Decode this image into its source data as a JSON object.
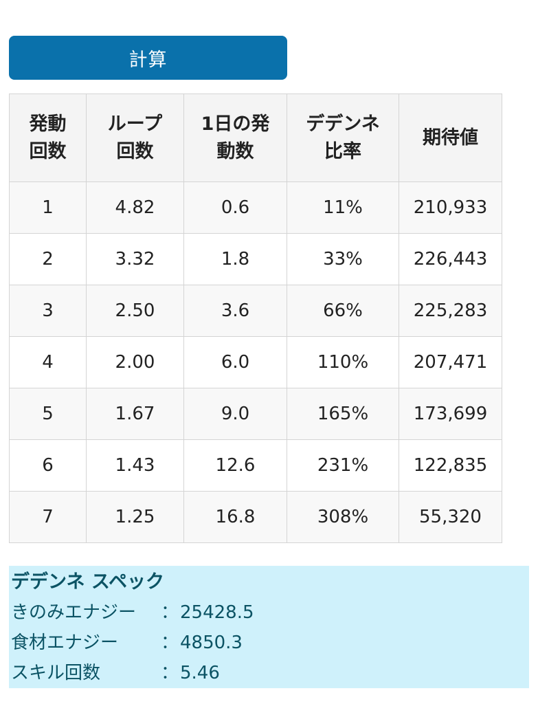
{
  "calc_button": {
    "label": "計算"
  },
  "table": {
    "headers": [
      [
        "発動",
        "回数"
      ],
      [
        "ループ",
        "回数"
      ],
      [
        "1日の発",
        "動数"
      ],
      [
        "デデンネ",
        "比率"
      ],
      [
        "期待値"
      ]
    ],
    "rows": [
      [
        "1",
        "4.82",
        "0.6",
        "11%",
        "210,933"
      ],
      [
        "2",
        "3.32",
        "1.8",
        "33%",
        "226,443"
      ],
      [
        "3",
        "2.50",
        "3.6",
        "66%",
        "225,283"
      ],
      [
        "4",
        "2.00",
        "6.0",
        "110%",
        "207,471"
      ],
      [
        "5",
        "1.67",
        "9.0",
        "165%",
        "173,699"
      ],
      [
        "6",
        "1.43",
        "12.6",
        "231%",
        "122,835"
      ],
      [
        "7",
        "1.25",
        "16.8",
        "308%",
        "55,320"
      ]
    ]
  },
  "spec": {
    "title": "デデンネ スペック",
    "items": [
      {
        "label": "きのみエナジー",
        "sep": "：",
        "value": "25428.5"
      },
      {
        "label": "食材エナジー",
        "sep": "：",
        "value": "4850.3"
      },
      {
        "label": "スキル回数",
        "sep": "：",
        "value": "5.46"
      }
    ]
  },
  "colors": {
    "button_bg": "#0a71ab",
    "spec_bg": "#cff1fb",
    "spec_text": "#0b5364"
  }
}
